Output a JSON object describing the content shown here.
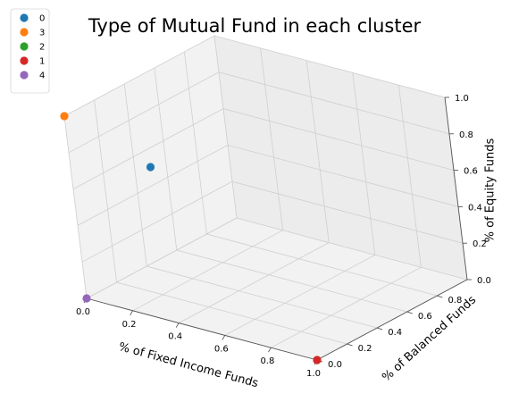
{
  "chart_data": {
    "type": "scatter",
    "title": "Type of Mutual Fund in each cluster",
    "xlabel": "% of Fixed Income Funds",
    "ylabel": "% of Balanced Funds",
    "zlabel": "% of Equity Funds",
    "xlim": [
      0,
      1
    ],
    "ylim": [
      0,
      1
    ],
    "zlim": [
      0,
      1
    ],
    "x_ticks": [
      "0.0",
      "0.2",
      "0.4",
      "0.6",
      "0.8",
      "1.0"
    ],
    "y_ticks": [
      "0.0",
      "0.2",
      "0.4",
      "0.6",
      "0.8"
    ],
    "z_ticks": [
      "0.0",
      "0.2",
      "0.4",
      "0.6",
      "0.8",
      "1.0"
    ],
    "grid": true,
    "legend_position": "top-left",
    "series": [
      {
        "name": "0",
        "color": "#1f77b4",
        "points": [
          {
            "x": 0.0,
            "y": 0.5,
            "z": 0.5
          }
        ]
      },
      {
        "name": "3",
        "color": "#ff7f0e",
        "points": [
          {
            "x": 0.0,
            "y": 0.0,
            "z": 1.0
          }
        ]
      },
      {
        "name": "2",
        "color": "#2ca02c",
        "points": [
          {
            "x": 1.0,
            "y": 0.0,
            "z": 0.0
          }
        ]
      },
      {
        "name": "1",
        "color": "#d62728",
        "points": [
          {
            "x": 1.0,
            "y": 0.0,
            "z": 0.0
          }
        ]
      },
      {
        "name": "4",
        "color": "#9467bd",
        "points": [
          {
            "x": 0.0,
            "y": 0.0,
            "z": 0.0
          }
        ]
      }
    ]
  }
}
